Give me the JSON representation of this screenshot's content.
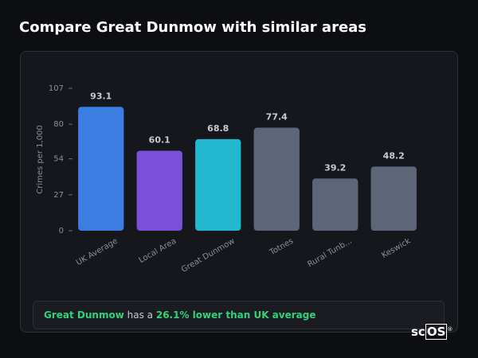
{
  "chart_data": {
    "type": "bar",
    "title": "Compare Great Dunmow with similar areas",
    "y_label": "Crimes per 1,000",
    "categories": [
      "UK Average",
      "Local Area",
      "Great Dunmow",
      "Totnes",
      "Rural Tunb...",
      "Keswick"
    ],
    "values": [
      93.1,
      60.1,
      68.8,
      77.4,
      39.2,
      48.2
    ],
    "colors": [
      "#3b7de0",
      "#7b4fd8",
      "#22b8cf",
      "#5c6678",
      "#5c6678",
      "#5c6678"
    ],
    "ylim": [
      0,
      107
    ],
    "yticks": [
      0,
      27,
      54,
      80,
      107
    ],
    "grid": false
  },
  "summary": {
    "area": "Great Dunmow",
    "text": "has a",
    "comparison": "26.1% lower than UK average"
  },
  "logo": {
    "prefix": "sc",
    "boxed": "OS",
    "mark": "®"
  }
}
